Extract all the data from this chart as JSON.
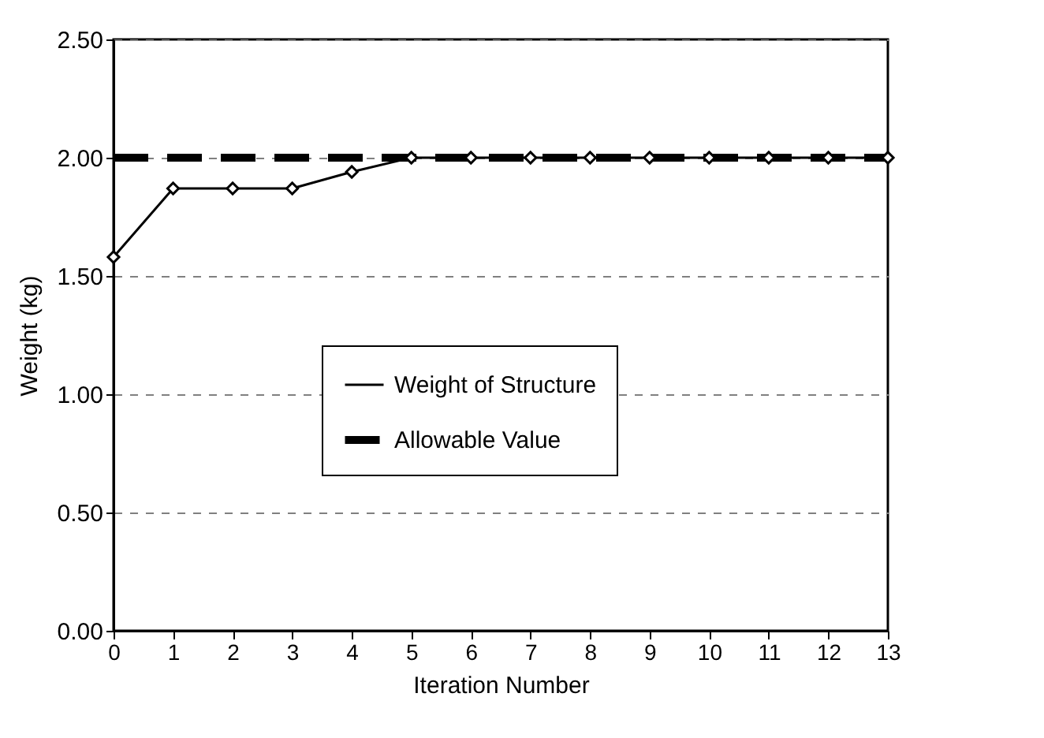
{
  "chart_data": {
    "type": "line",
    "xlabel": "Iteration Number",
    "ylabel": "Weight (kg)",
    "x": [
      0,
      1,
      2,
      3,
      4,
      5,
      6,
      7,
      8,
      9,
      10,
      11,
      12,
      13
    ],
    "series": [
      {
        "name": "Weight of Structure",
        "color": "#000000",
        "marker": "diamond",
        "line_style": "solid",
        "values": [
          1.58,
          1.87,
          1.87,
          1.87,
          1.94,
          2.0,
          2.0,
          2.0,
          2.0,
          2.0,
          2.0,
          2.0,
          2.0,
          2.0
        ]
      },
      {
        "name": "Allowable Value",
        "color": "#000000",
        "marker": "none",
        "line_style": "dashed",
        "values": [
          2.0,
          2.0,
          2.0,
          2.0,
          2.0,
          2.0,
          2.0,
          2.0,
          2.0,
          2.0,
          2.0,
          2.0,
          2.0,
          2.0
        ]
      }
    ],
    "xlim": [
      0,
      13
    ],
    "xticks": [
      0,
      1,
      2,
      3,
      4,
      5,
      6,
      7,
      8,
      9,
      10,
      11,
      12,
      13
    ],
    "ylim": [
      0,
      2.5
    ],
    "yticks": [
      {
        "value": 0,
        "label": "0.00"
      },
      {
        "value": 0.5,
        "label": "0.50"
      },
      {
        "value": 1,
        "label": "1.00"
      },
      {
        "value": 1.5,
        "label": "1.50"
      },
      {
        "value": 2,
        "label": "2.00"
      },
      {
        "value": 2.5,
        "label": "2.50"
      }
    ],
    "grid": "y",
    "legend": "right"
  }
}
